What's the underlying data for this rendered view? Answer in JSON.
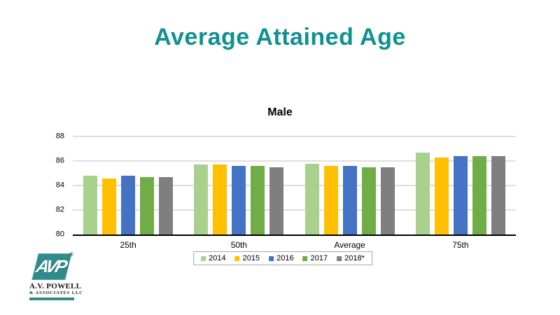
{
  "title": {
    "text": "Average Attained Age",
    "color": "#0f9190"
  },
  "chart_data": {
    "type": "bar",
    "title": "Male",
    "categories": [
      "25th",
      "50th",
      "Average",
      "75th"
    ],
    "series": [
      {
        "name": "2014",
        "color": "#a9d18e",
        "values": [
          84.8,
          85.7,
          85.8,
          86.7
        ]
      },
      {
        "name": "2015",
        "color": "#ffc000",
        "values": [
          84.6,
          85.7,
          85.6,
          86.3
        ]
      },
      {
        "name": "2016",
        "color": "#4472c4",
        "values": [
          84.8,
          85.6,
          85.6,
          86.4
        ]
      },
      {
        "name": "2017",
        "color": "#70ad47",
        "values": [
          84.7,
          85.6,
          85.5,
          86.4
        ]
      },
      {
        "name": "2018*",
        "color": "#7f7f7f",
        "values": [
          84.7,
          85.5,
          85.5,
          86.4
        ]
      }
    ],
    "ylim": [
      80,
      88
    ],
    "yticks": [
      80,
      82,
      84,
      86,
      88
    ],
    "grid": true,
    "gridline_color": "#bfbfbf",
    "legend_position": "bottom"
  },
  "logo": {
    "monogram": "AVP",
    "registered": "®",
    "line1": "A.V. POWELL",
    "line2": "& ASSOCIATES LLC",
    "color": "#2e8b8b"
  }
}
